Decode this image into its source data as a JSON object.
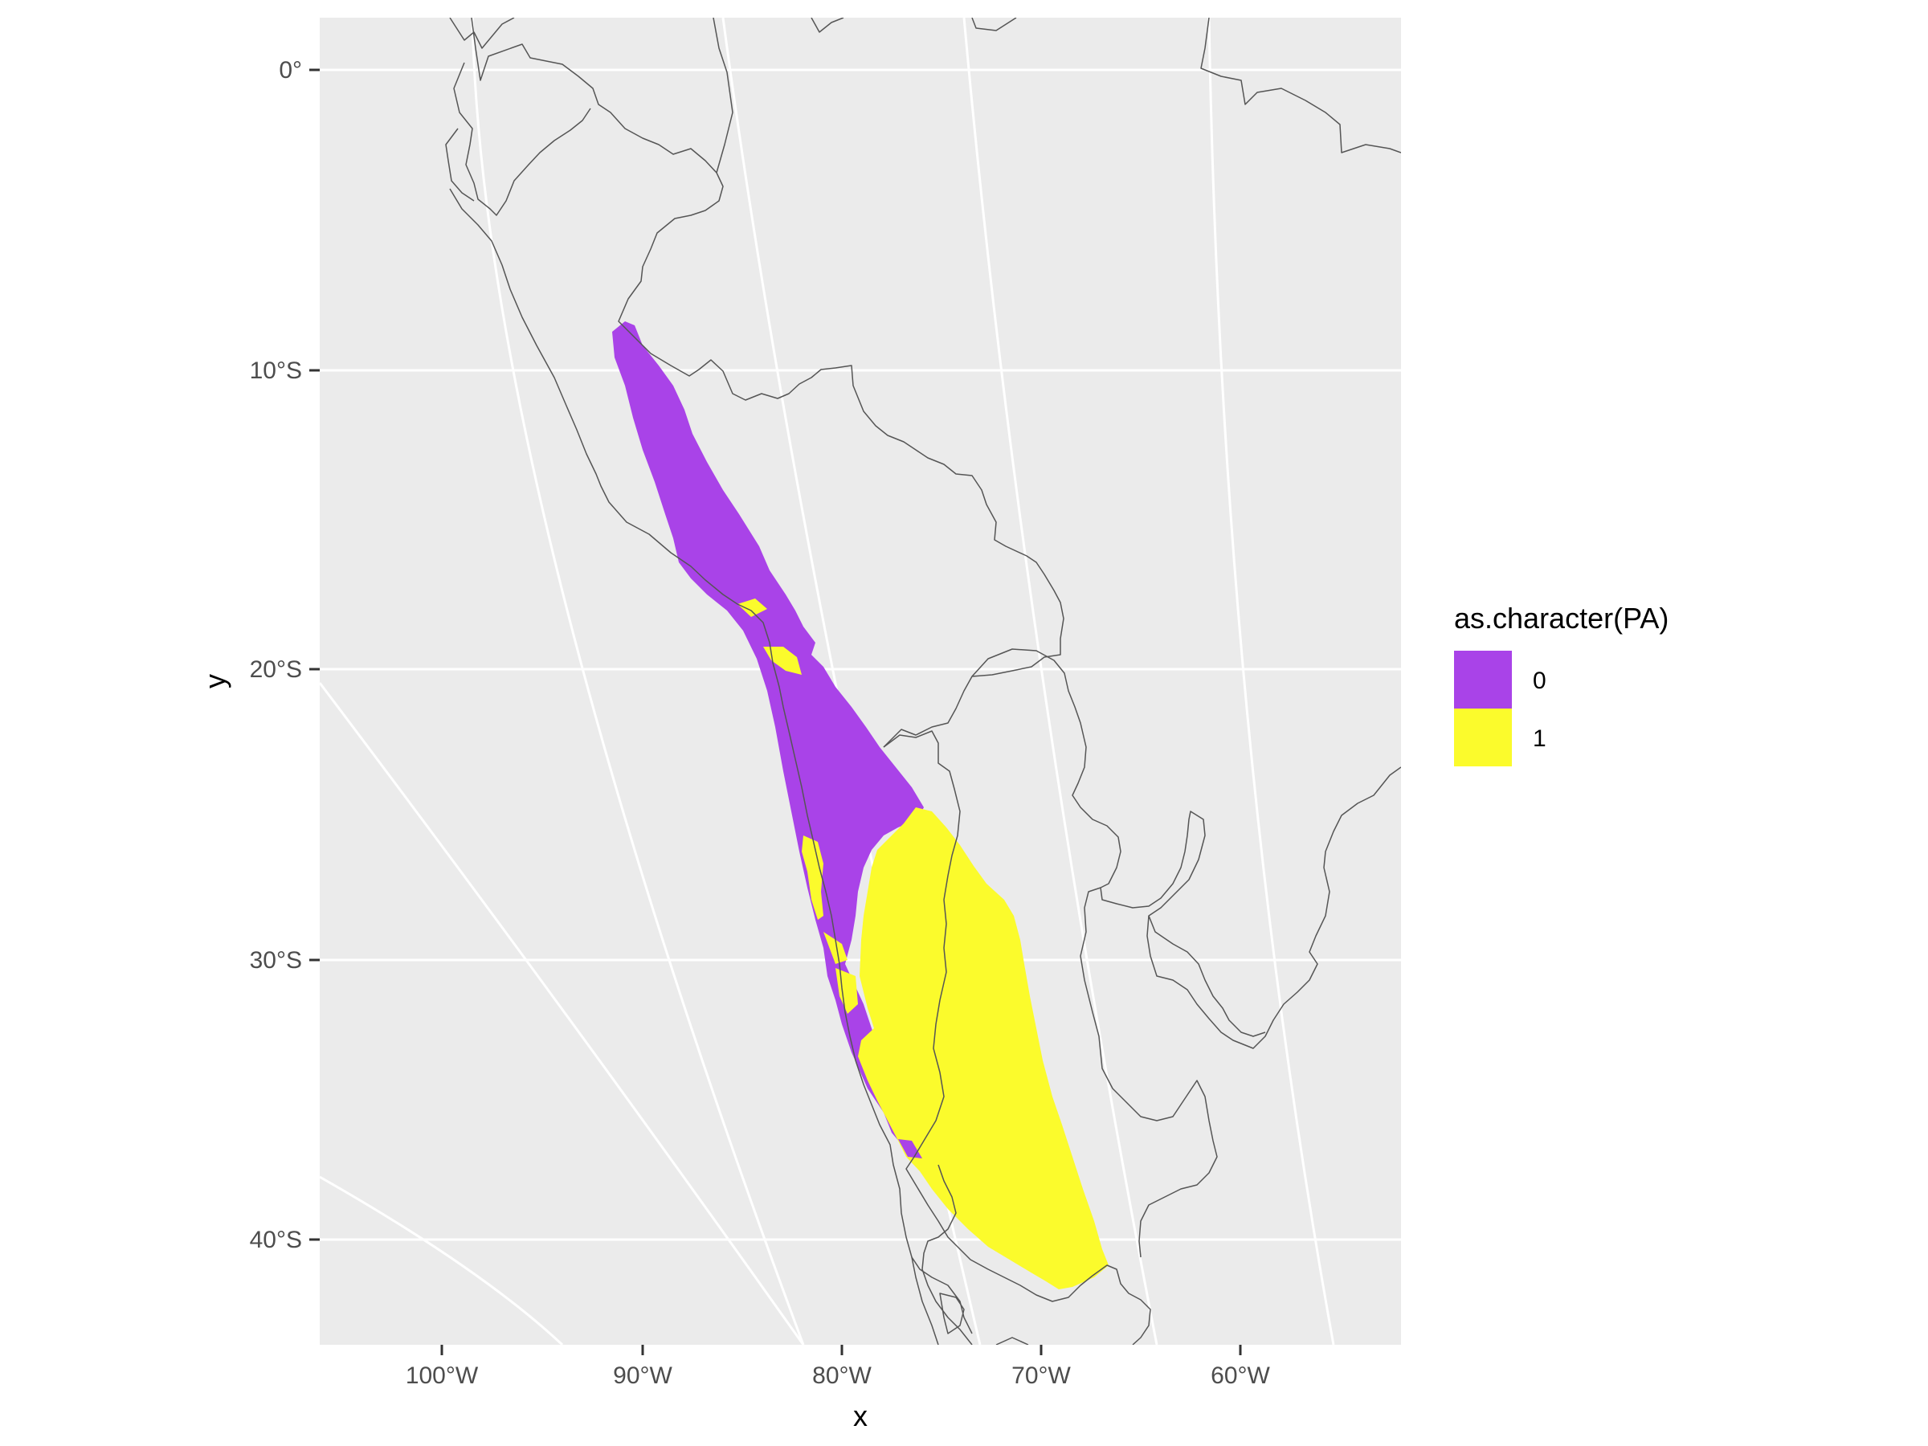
{
  "map": {
    "y_axis_labels": [
      "0°",
      "10°S",
      "20°S",
      "30°S",
      "40°S"
    ],
    "x_axis_labels": [
      "100°W",
      "90°W",
      "80°W",
      "70°W",
      "60°W"
    ],
    "x_title": "x",
    "y_title": "y",
    "panel_background": "#ebebeb",
    "grid_color": "#ffffff",
    "border_color": "#555555"
  },
  "legend": {
    "title": "as.character(PA)",
    "items": [
      {
        "label": "0",
        "color": "#a943e8"
      },
      {
        "label": "1",
        "color": "#fbfb2c"
      }
    ]
  }
}
